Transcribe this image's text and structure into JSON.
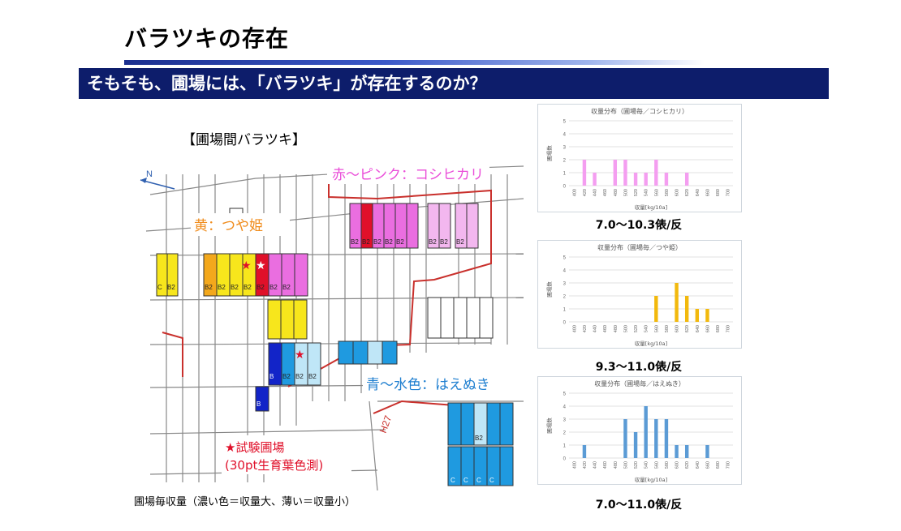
{
  "slide": {
    "title": "バラツキの存在",
    "banner": "そもそも、圃場には、「バラツキ」が存在するのか？"
  },
  "map": {
    "title": "【圃場間バラツキ】",
    "north": "N",
    "label_koshihikari": "赤～ピンク：コシヒカリ",
    "label_tsuyahime": "黄：つや姫",
    "label_haenuki": "青～水色：はえぬき",
    "label_trial": "★試験圃場",
    "label_trial_sub": "(30pt生育葉色測)",
    "road_label": "H27",
    "caption": "圃場毎収量（濃い色＝収量大、薄い＝収量小）",
    "plot_marks": {
      "b2": "B2",
      "b": "B",
      "c": "C"
    },
    "colors": {
      "red": "#e0102a",
      "pink": "#ea6ee0",
      "light_pink": "#f3b7ef",
      "yellow": "#f7e61c",
      "orange": "#f3a81c",
      "dark_blue": "#1224c8",
      "blue": "#1f9ae0",
      "light_blue": "#bfe6f7"
    }
  },
  "chart_data": [
    {
      "type": "bar",
      "title": "収量分布（圃場毎／コシヒカリ）",
      "ylabel": "圃場数",
      "xlabel": "収量[kg/10a]",
      "categories": [
        "400",
        "420",
        "440",
        "460",
        "480",
        "500",
        "520",
        "540",
        "560",
        "580",
        "600",
        "620",
        "640",
        "660",
        "680",
        "700"
      ],
      "values": [
        0,
        2,
        1,
        0,
        2,
        2,
        1,
        1,
        2,
        1,
        0,
        1,
        0,
        0,
        0,
        0
      ],
      "ylim": [
        0,
        5
      ],
      "color": "#f49ef0",
      "range_label": "7.0～10.3俵/反"
    },
    {
      "type": "bar",
      "title": "収量分布（圃場毎／つや姫）",
      "ylabel": "圃場数",
      "xlabel": "収量[kg/10a]",
      "categories": [
        "400",
        "420",
        "440",
        "460",
        "480",
        "500",
        "520",
        "540",
        "560",
        "580",
        "600",
        "620",
        "640",
        "660",
        "680",
        "700"
      ],
      "values": [
        0,
        0,
        0,
        0,
        0,
        0,
        0,
        0,
        2,
        0,
        3,
        2,
        1,
        1,
        0,
        0
      ],
      "ylim": [
        0,
        5
      ],
      "color": "#f2b90d",
      "range_label": "9.3～11.0俵/反"
    },
    {
      "type": "bar",
      "title": "収量分布（圃場毎／はえぬき）",
      "ylabel": "圃場数",
      "xlabel": "収量[kg/10a]",
      "categories": [
        "400",
        "420",
        "440",
        "460",
        "480",
        "500",
        "520",
        "540",
        "560",
        "580",
        "600",
        "620",
        "640",
        "660",
        "680",
        "700"
      ],
      "values": [
        0,
        1,
        0,
        0,
        0,
        3,
        2,
        4,
        3,
        3,
        1,
        1,
        0,
        1,
        0,
        0
      ],
      "ylim": [
        0,
        5
      ],
      "color": "#5b9bd5",
      "range_label": "7.0～11.0俵/反"
    }
  ]
}
